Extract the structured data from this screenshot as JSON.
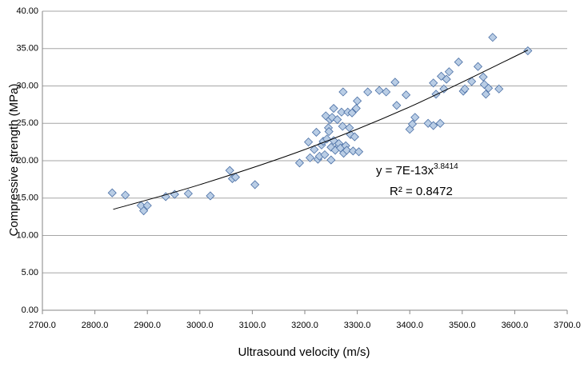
{
  "chart_data": {
    "type": "scatter",
    "x_label": "Ultrasound velocity (m/s)",
    "y_label": "Compressive strength (MPa)",
    "xlim": [
      2700,
      3700
    ],
    "xticks": [
      {
        "value": 2700,
        "label": "2700.0"
      },
      {
        "value": 2800,
        "label": "2800.0"
      },
      {
        "value": 2900,
        "label": "2900.0"
      },
      {
        "value": 3000,
        "label": "3000.0"
      },
      {
        "value": 3100,
        "label": "3100.0"
      },
      {
        "value": 3200,
        "label": "3200.0"
      },
      {
        "value": 3300,
        "label": "3300.0"
      },
      {
        "value": 3400,
        "label": "3400.0"
      },
      {
        "value": 3500,
        "label": "3500.0"
      },
      {
        "value": 3600,
        "label": "3600.0"
      },
      {
        "value": 3700,
        "label": "3700.0"
      }
    ],
    "ylim": [
      0,
      40
    ],
    "yticks": [
      {
        "value": 0,
        "label": "0.00"
      },
      {
        "value": 5,
        "label": "5.00"
      },
      {
        "value": 10,
        "label": "10.00"
      },
      {
        "value": 15,
        "label": "15.00"
      },
      {
        "value": 20,
        "label": "20.00"
      },
      {
        "value": 25,
        "label": "25.00"
      },
      {
        "value": 30,
        "label": "30.00"
      },
      {
        "value": 35,
        "label": "35.00"
      },
      {
        "value": 40,
        "label": "40.00"
      }
    ],
    "grid": true,
    "series": [
      {
        "color": "#b9cde5",
        "x": [
          2833,
          2858,
          2888,
          2893,
          2900,
          2935,
          2952,
          2978,
          3020,
          3057,
          3062,
          3068,
          3105,
          3190,
          3207,
          3210,
          3218,
          3222,
          3225,
          3228,
          3232,
          3235,
          3238,
          3240,
          3242,
          3245,
          3246,
          3248,
          3250,
          3250,
          3252,
          3255,
          3255,
          3258,
          3262,
          3265,
          3265,
          3268,
          3270,
          3272,
          3273,
          3274,
          3278,
          3280,
          3282,
          3285,
          3287,
          3290,
          3292,
          3295,
          3298,
          3300,
          3303,
          3320,
          3342,
          3355,
          3372,
          3375,
          3393,
          3400,
          3405,
          3410,
          3435,
          3445,
          3445,
          3450,
          3458,
          3460,
          3465,
          3470,
          3475,
          3493,
          3502,
          3505,
          3518,
          3530,
          3540,
          3542,
          3545,
          3550,
          3558,
          3570,
          3625
        ],
        "values": [
          15.7,
          15.4,
          14.0,
          13.3,
          14.0,
          15.2,
          15.5,
          15.6,
          15.3,
          18.7,
          17.6,
          17.8,
          16.8,
          19.7,
          22.5,
          20.4,
          21.5,
          23.8,
          20.2,
          20.6,
          22.1,
          22.6,
          20.8,
          26.0,
          22.9,
          24.4,
          23.9,
          25.5,
          20.1,
          21.8,
          25.8,
          27.0,
          22.7,
          21.4,
          25.5,
          22.0,
          22.3,
          21.7,
          26.5,
          24.6,
          29.2,
          21.0,
          22.0,
          21.4,
          26.5,
          24.4,
          23.5,
          26.4,
          21.3,
          23.2,
          27.0,
          28.0,
          21.2,
          29.2,
          29.4,
          29.2,
          30.5,
          27.4,
          28.8,
          24.2,
          24.9,
          25.8,
          25.0,
          24.7,
          30.4,
          28.9,
          25.0,
          31.3,
          29.6,
          30.9,
          31.9,
          33.2,
          29.3,
          29.6,
          30.6,
          32.6,
          31.2,
          30.2,
          28.9,
          29.7,
          36.5,
          29.6,
          34.7
        ]
      }
    ],
    "trendline": {
      "color": "#000000",
      "x": [
        2835,
        3000,
        3200,
        3400,
        3625
      ],
      "values": [
        13.5,
        16.8,
        21.5,
        27.2,
        34.8
      ]
    },
    "equation": {
      "text": "y = 7E-13x",
      "exponent": "3.8414"
    },
    "r_squared": "R² = 0.8472"
  }
}
